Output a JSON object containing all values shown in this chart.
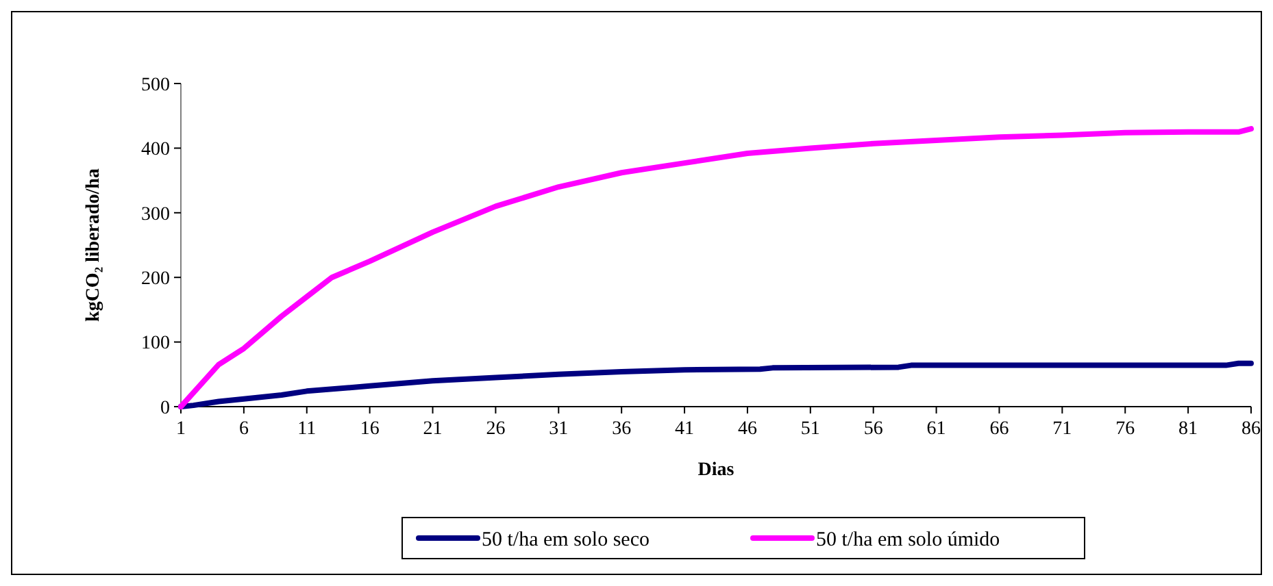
{
  "chart_data": {
    "type": "line",
    "xlabel": "Dias",
    "ylabel": "kgCO₂ liberado/ha",
    "xlim": [
      1,
      86
    ],
    "xticks": [
      1,
      6,
      11,
      16,
      21,
      26,
      31,
      36,
      41,
      46,
      51,
      56,
      61,
      66,
      71,
      76,
      81,
      86
    ],
    "ylim": [
      0,
      500
    ],
    "yticks": [
      0,
      100,
      200,
      300,
      400,
      500
    ],
    "grid": false,
    "legend": "bottom",
    "marker": "none",
    "line_style": "solid",
    "series": [
      {
        "name": "50 t/ha em solo seco",
        "color": "#000080",
        "x": [
          1,
          2,
          4,
          6,
          9,
          11,
          16,
          21,
          26,
          31,
          36,
          41,
          47,
          48,
          58,
          59,
          84,
          85,
          86
        ],
        "values": [
          0,
          2,
          8,
          12,
          18,
          24,
          32,
          40,
          45,
          50,
          54,
          57,
          58,
          60,
          61,
          64,
          64,
          67,
          67
        ]
      },
      {
        "name": "50 t/ha em solo úmido",
        "color": "#ff00ff",
        "x": [
          1,
          4,
          6,
          9,
          11,
          13,
          16,
          21,
          26,
          31,
          36,
          41,
          46,
          51,
          56,
          61,
          66,
          71,
          76,
          81,
          85,
          86
        ],
        "values": [
          0,
          65,
          90,
          140,
          170,
          200,
          225,
          270,
          310,
          340,
          362,
          377,
          392,
          400,
          407,
          412,
          417,
          420,
          424,
          425,
          425,
          430
        ]
      }
    ]
  }
}
